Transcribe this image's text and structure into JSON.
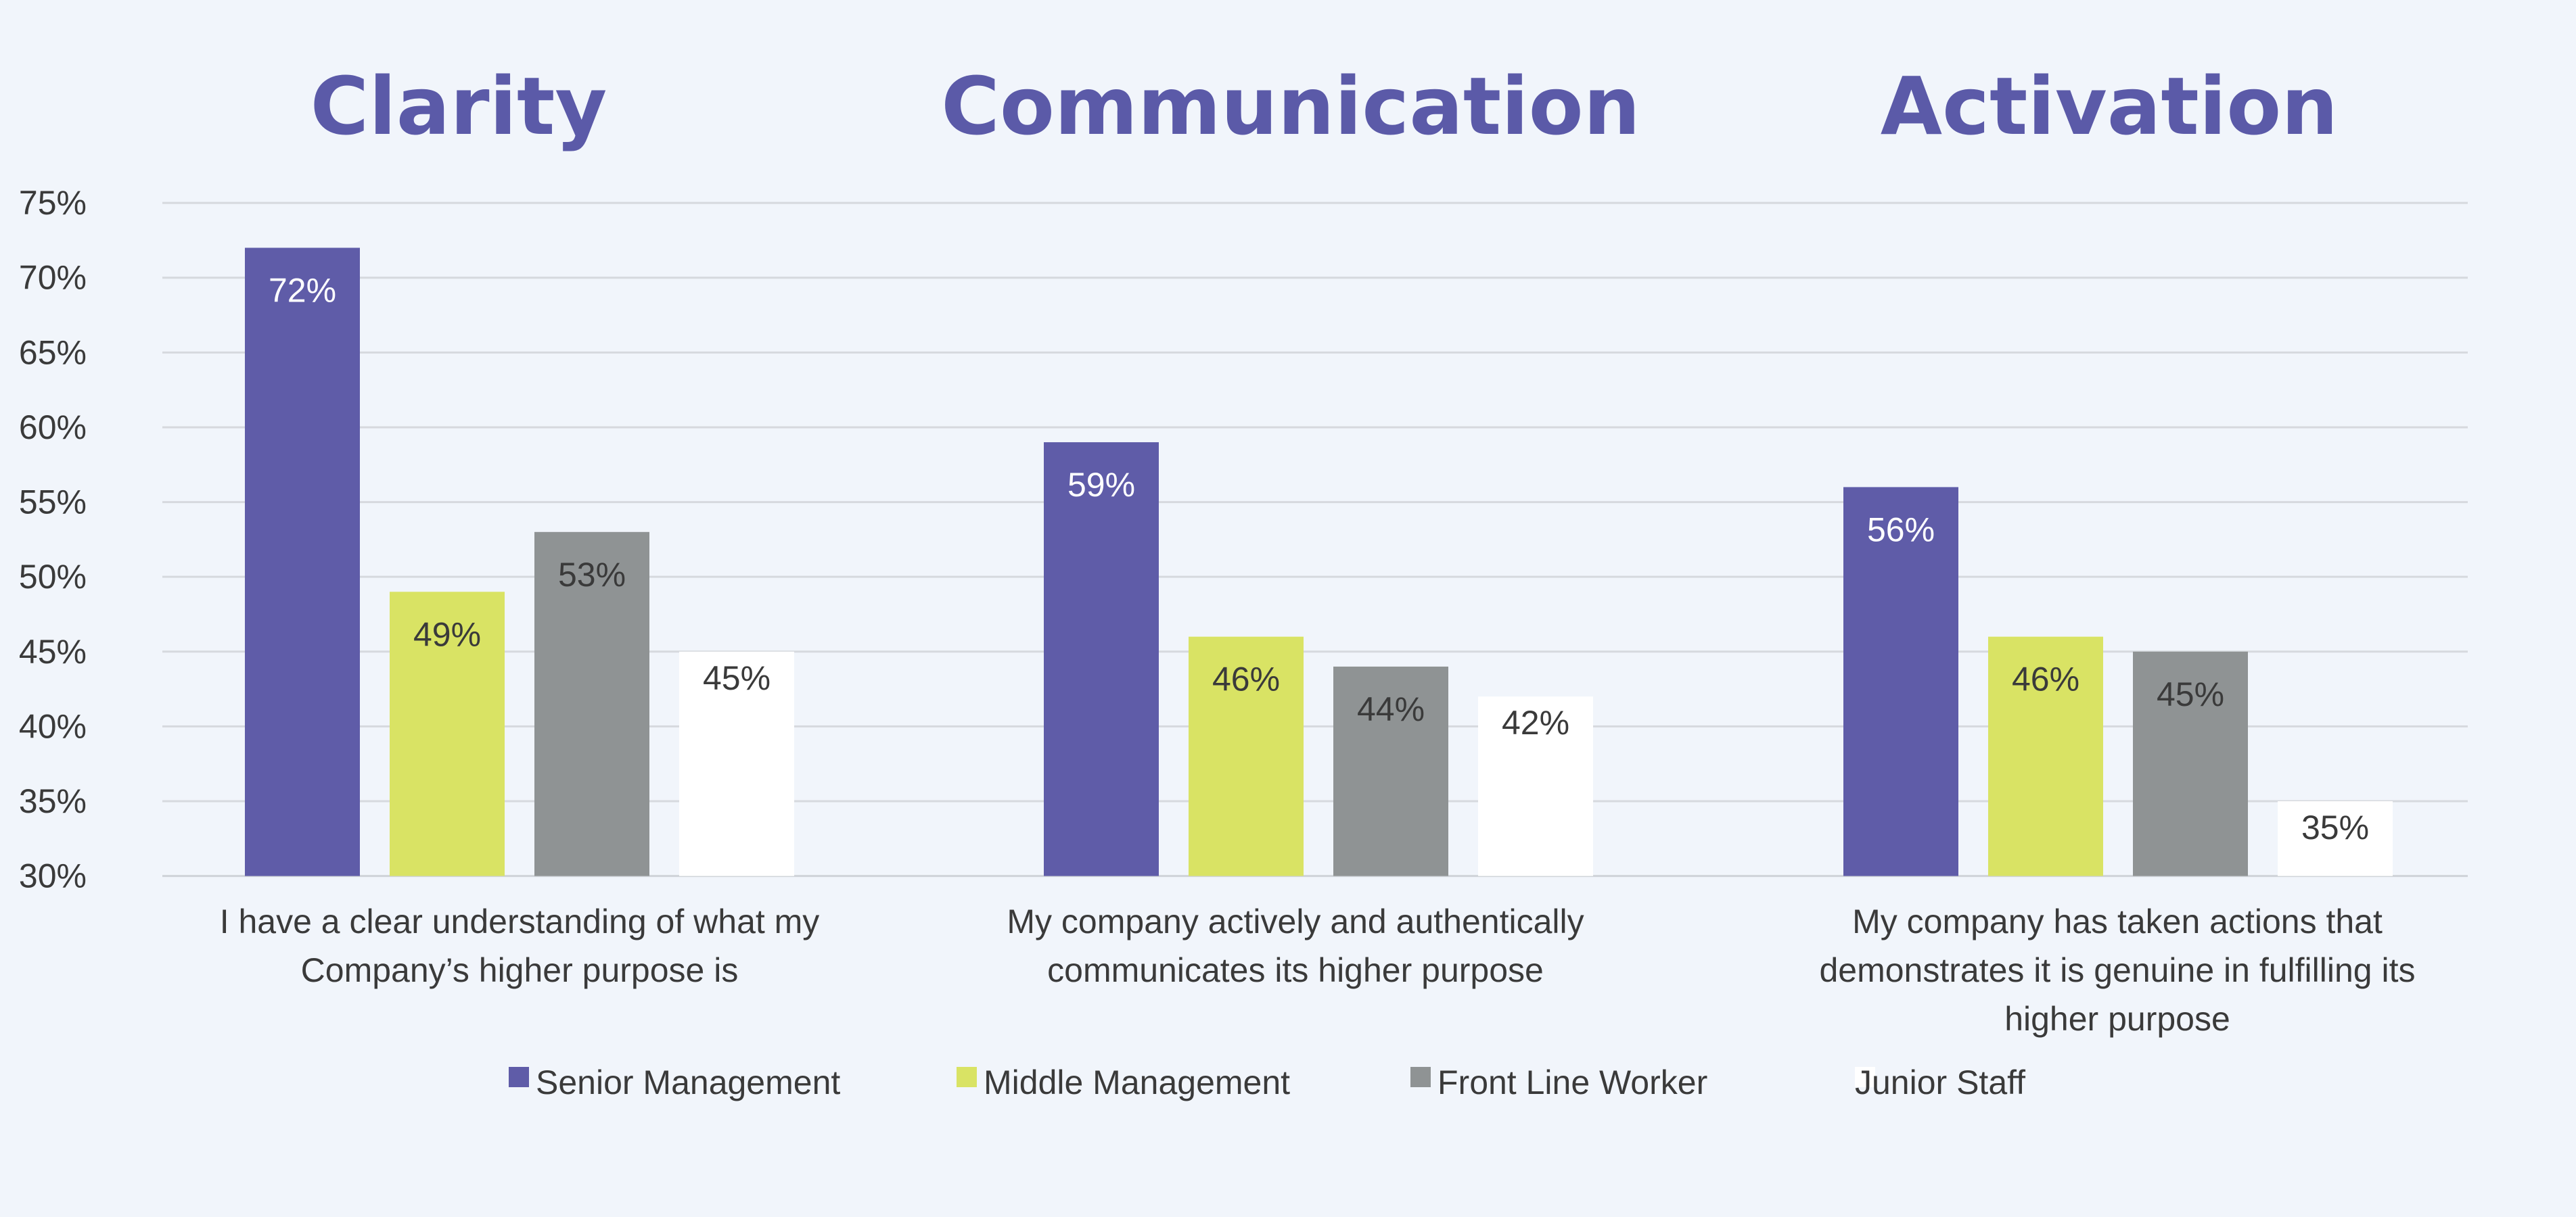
{
  "chart_data": {
    "type": "bar",
    "headings": [
      "Clarity",
      "Communication",
      "Activation"
    ],
    "categories": [
      [
        "I have a clear understanding of what my",
        "Company’s higher purpose is"
      ],
      [
        "My company actively and authentically",
        "communicates its higher purpose"
      ],
      [
        "My company has taken actions that",
        "demonstrates it is genuine in fulfilling its",
        "higher purpose"
      ]
    ],
    "series": [
      {
        "name": "Senior Management",
        "color": "#5f5ca8",
        "values": [
          72,
          59,
          56
        ],
        "labels": [
          "72%",
          "59%",
          "56%"
        ]
      },
      {
        "name": "Middle Management",
        "color": "#d9e364",
        "values": [
          49,
          46,
          46
        ],
        "labels": [
          "49%",
          "46%",
          "46%"
        ]
      },
      {
        "name": "Front Line Worker",
        "color": "#8f9394",
        "values": [
          53,
          44,
          45
        ],
        "labels": [
          "53%",
          "44%",
          "45%"
        ]
      },
      {
        "name": "Junior Staff",
        "color": "#ffffff",
        "values": [
          45,
          42,
          35
        ],
        "labels": [
          "45%",
          "42%",
          "35%"
        ]
      }
    ],
    "ylim": [
      30,
      75
    ],
    "yticks": [
      "30%",
      "35%",
      "40%",
      "45%",
      "50%",
      "55%",
      "60%",
      "65%",
      "70%",
      "75%"
    ],
    "grid": true,
    "legend_position": "bottom"
  }
}
